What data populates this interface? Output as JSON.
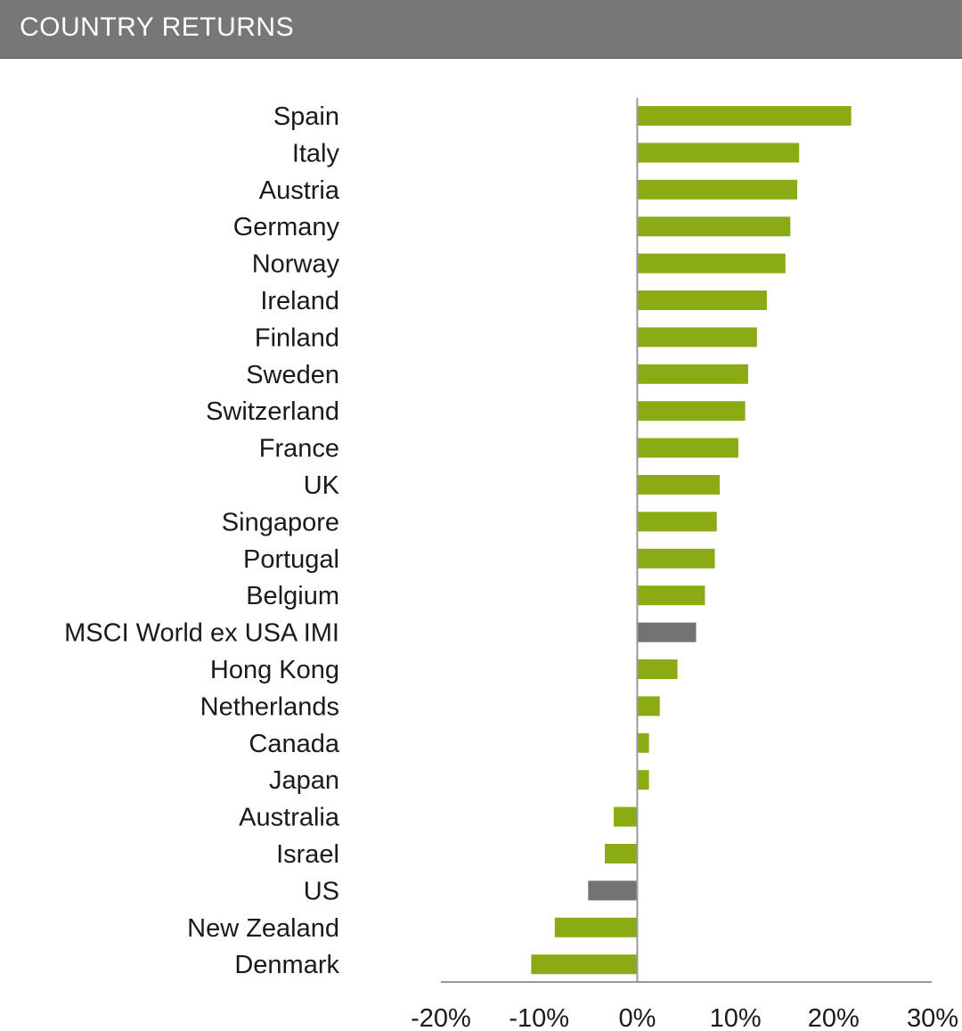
{
  "header": {
    "title": "COUNTRY RETURNS"
  },
  "colors": {
    "header_bg": "#777777",
    "header_text": "#ffffff",
    "bar_default": "#8aab13",
    "bar_highlight": "#737373",
    "axis": "#9a9a9a",
    "text": "#1a1a1a"
  },
  "chart_data": {
    "type": "bar",
    "orientation": "horizontal",
    "title": "COUNTRY RETURNS",
    "xlabel": "",
    "ylabel": "",
    "xlim": [
      -20,
      30
    ],
    "xticks": [
      -20,
      -10,
      0,
      10,
      20,
      30
    ],
    "xtick_labels": [
      "-20%",
      "-10%",
      "0%",
      "10%",
      "20%",
      "30%"
    ],
    "grid": false,
    "legend": "none",
    "categories": [
      "Spain",
      "Italy",
      "Austria",
      "Germany",
      "Norway",
      "Ireland",
      "Finland",
      "Sweden",
      "Switzerland",
      "France",
      "UK",
      "Singapore",
      "Portugal",
      "Belgium",
      "MSCI World ex USA IMI",
      "Hong Kong",
      "Netherlands",
      "Canada",
      "Japan",
      "Australia",
      "Israel",
      "US",
      "New Zealand",
      "Denmark"
    ],
    "values": [
      21.8,
      16.5,
      16.3,
      15.6,
      15.1,
      13.2,
      12.2,
      11.3,
      11.0,
      10.3,
      8.4,
      8.1,
      7.9,
      6.9,
      6.0,
      4.1,
      2.3,
      1.2,
      1.2,
      -2.4,
      -3.3,
      -5.0,
      -8.4,
      -10.8
    ],
    "highlighted": [
      "MSCI World ex USA IMI",
      "US"
    ]
  }
}
